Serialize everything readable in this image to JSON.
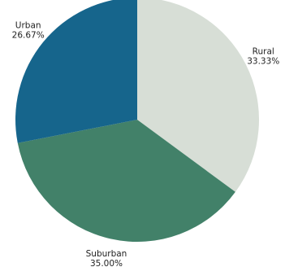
{
  "chart_data": {
    "type": "pie",
    "title": "",
    "slices": [
      {
        "label": "Rural",
        "value": 33.33,
        "pct_label": "33.33%",
        "color": "#d7ded6"
      },
      {
        "label": "Suburban",
        "value": 35.0,
        "pct_label": "35.00%",
        "color": "#428169"
      },
      {
        "label": "Urban",
        "value": 26.67,
        "pct_label": "26.67%",
        "color": "#16658c"
      }
    ],
    "start_angle_deg": 0,
    "direction": "clockwise",
    "legend": "none"
  }
}
